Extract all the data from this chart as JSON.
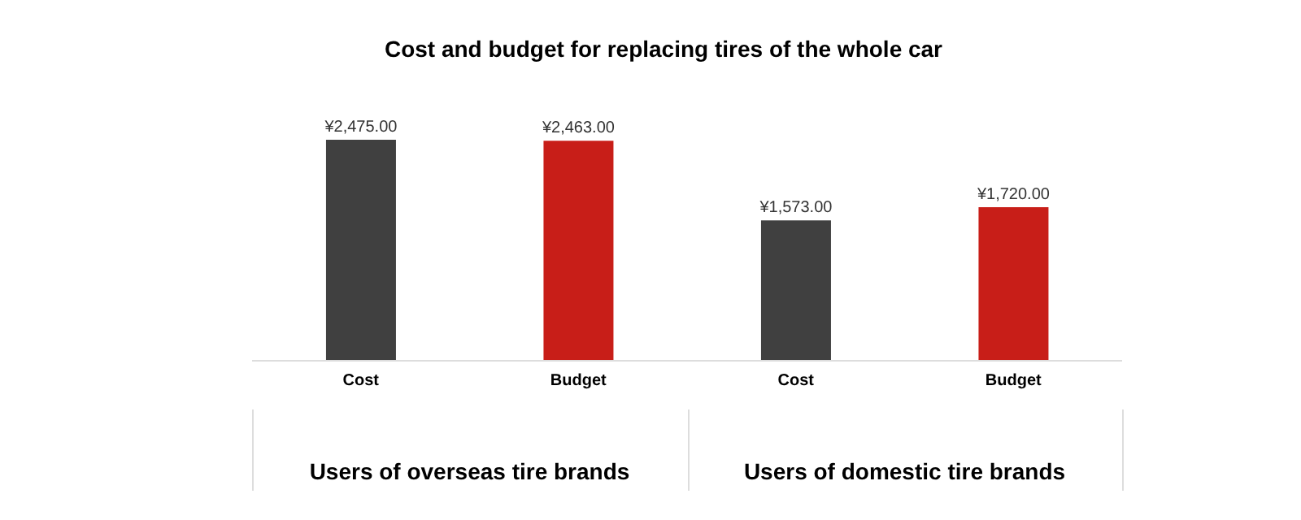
{
  "chart_data": {
    "type": "bar",
    "title": "Cost and budget for replacing tires of the whole car",
    "categories": [
      "Cost",
      "Budget",
      "Cost",
      "Budget"
    ],
    "values": [
      2475,
      2463,
      1573,
      1720
    ],
    "colors": [
      "#404040",
      "#c81e18",
      "#404040",
      "#c81e18"
    ],
    "value_labels": [
      "¥2,475.00",
      "¥2,463.00",
      "¥1,573.00",
      "¥1,720.00"
    ],
    "annotations": [
      "Users of overseas tire brands",
      "Users of domestic tire brands"
    ],
    "grid": false,
    "legend": false
  }
}
